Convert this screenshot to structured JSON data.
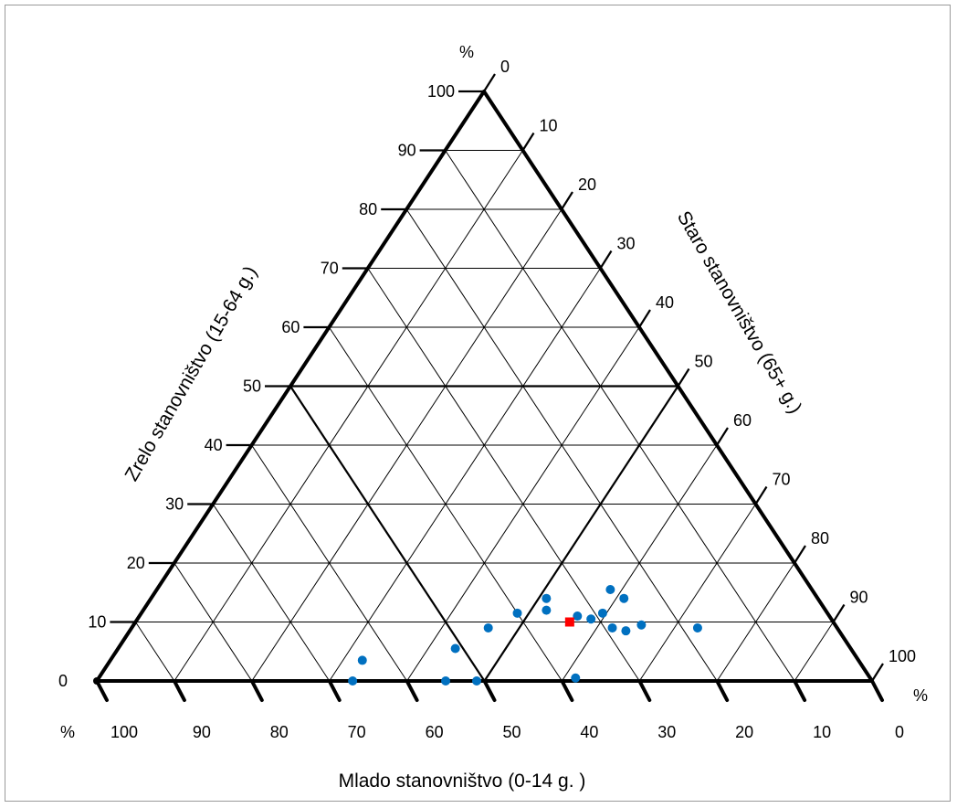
{
  "chart_data": {
    "type": "scatter",
    "subtype": "ternary",
    "axes": {
      "bottom": {
        "label": "Mlado stanovništvo (0-14 g. )",
        "ticks": [
          "100",
          "90",
          "80",
          "70",
          "60",
          "50",
          "40",
          "30",
          "20",
          "10",
          "0"
        ],
        "unit": "%"
      },
      "left": {
        "label": "Zrelo stanovništvo (15-64 g.)",
        "ticks": [
          "0",
          "10",
          "20",
          "30",
          "40",
          "50",
          "60",
          "70",
          "80",
          "90",
          "100"
        ],
        "unit": "%"
      },
      "right": {
        "label": "Staro stanovništvo (65+ g.)",
        "ticks": [
          "0",
          "10",
          "20",
          "30",
          "40",
          "50",
          "60",
          "70",
          "80",
          "90",
          "100"
        ],
        "unit": "%"
      }
    },
    "grid": true,
    "grid_step": 10,
    "highlight_lines_at": 50,
    "series": [
      {
        "marker": "circle",
        "color": "#0070c0",
        "points": [
          {
            "mlado": 67,
            "zrelo": 0,
            "staro": 33
          },
          {
            "mlado": 64,
            "zrelo": 3.5,
            "staro": 32.5
          },
          {
            "mlado": 55,
            "zrelo": 0,
            "staro": 45
          },
          {
            "mlado": 51,
            "zrelo": 5.5,
            "staro": 43.5
          },
          {
            "mlado": 51,
            "zrelo": 0,
            "staro": 49
          },
          {
            "mlado": 45,
            "zrelo": 9,
            "staro": 46
          },
          {
            "mlado": 40,
            "zrelo": 11.5,
            "staro": 48.5
          },
          {
            "mlado": 38,
            "zrelo": 0.5,
            "staro": 61.5
          },
          {
            "mlado": 36,
            "zrelo": 12,
            "staro": 52
          },
          {
            "mlado": 35,
            "zrelo": 14,
            "staro": 51
          },
          {
            "mlado": 32.5,
            "zrelo": 11,
            "staro": 56.5
          },
          {
            "mlado": 31,
            "zrelo": 10.5,
            "staro": 58.5
          },
          {
            "mlado": 29,
            "zrelo": 11.5,
            "staro": 59.5
          },
          {
            "mlado": 29,
            "zrelo": 9,
            "staro": 62
          },
          {
            "mlado": 27.5,
            "zrelo": 8.5,
            "staro": 64
          },
          {
            "mlado": 26,
            "zrelo": 15.5,
            "staro": 58.5
          },
          {
            "mlado": 25,
            "zrelo": 14,
            "staro": 61
          },
          {
            "mlado": 25,
            "zrelo": 9.5,
            "staro": 65.5
          },
          {
            "mlado": 18,
            "zrelo": 9,
            "staro": 73
          }
        ]
      },
      {
        "marker": "square",
        "color": "#ff0000",
        "points": [
          {
            "mlado": 34,
            "zrelo": 10,
            "staro": 56
          }
        ]
      }
    ]
  }
}
